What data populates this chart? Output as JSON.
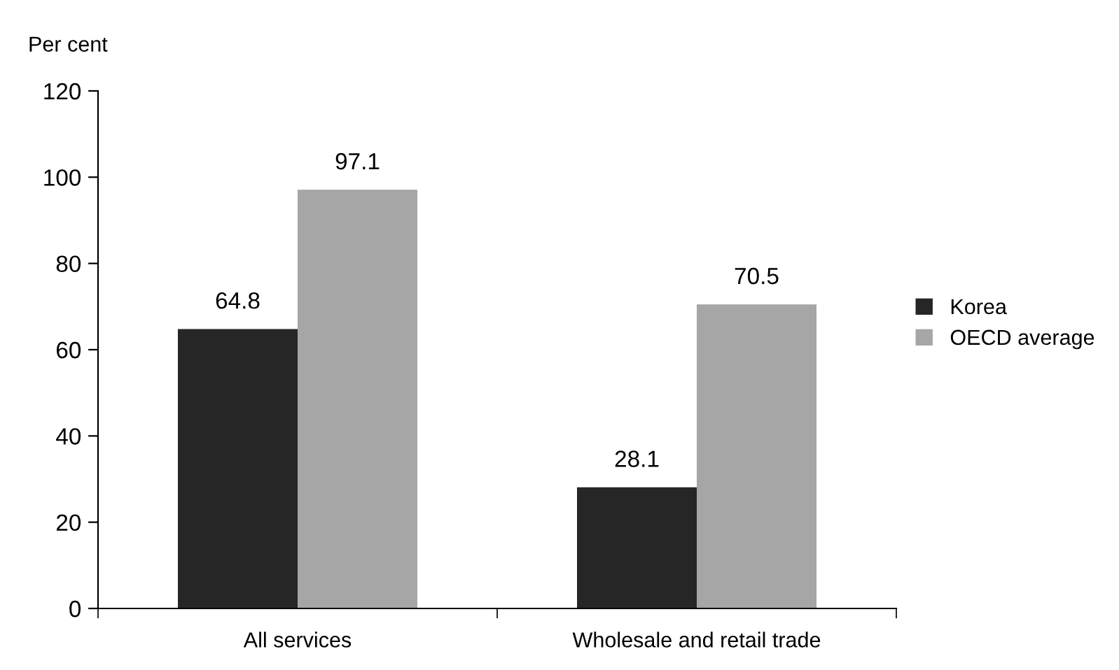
{
  "chart_data": {
    "type": "bar",
    "ylabel": "Per cent",
    "categories": [
      "All services",
      "Wholesale and retail trade"
    ],
    "series": [
      {
        "name": "Korea",
        "color": "#262626",
        "values": [
          64.8,
          28.1
        ]
      },
      {
        "name": "OECD average",
        "color": "#a6a6a6",
        "values": [
          97.1,
          70.5
        ]
      }
    ],
    "ylim": [
      0,
      120
    ],
    "yticks": [
      0,
      20,
      40,
      60,
      80,
      100,
      120
    ],
    "data_labels": true,
    "legend": "right",
    "grid": false
  }
}
